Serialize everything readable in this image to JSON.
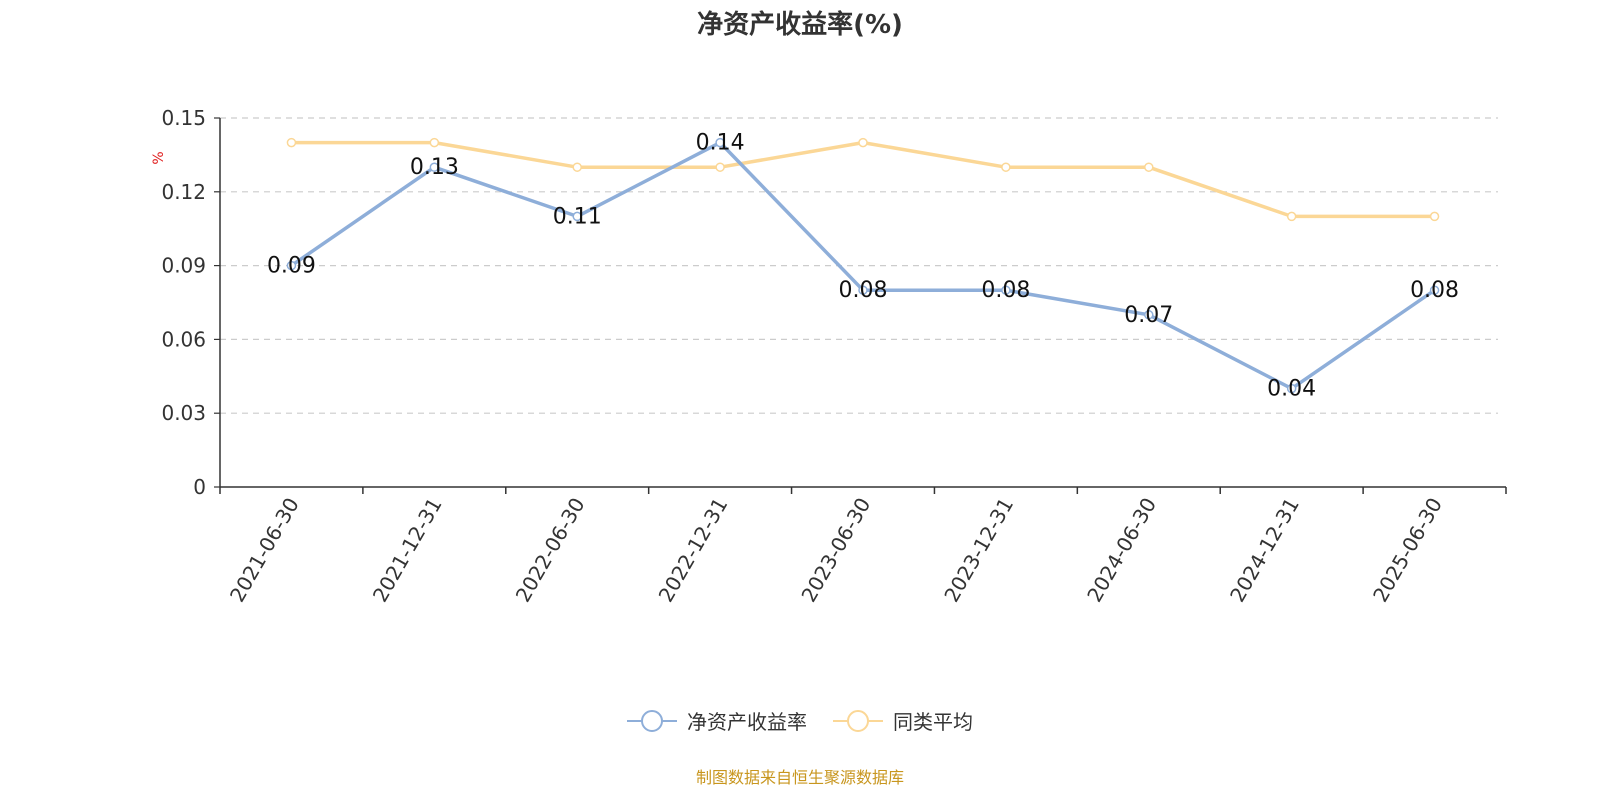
{
  "chart_data": {
    "type": "line",
    "title": "净资产收益率(%)",
    "ylabel": "%",
    "xlabel": "",
    "categories": [
      "2021-06-30",
      "2021-12-31",
      "2022-06-30",
      "2022-12-31",
      "2023-06-30",
      "2023-12-31",
      "2024-06-30",
      "2024-12-31",
      "2025-06-30"
    ],
    "series": [
      {
        "name": "净资产收益率",
        "color": "#8eaed9",
        "values": [
          0.09,
          0.13,
          0.11,
          0.14,
          0.08,
          0.08,
          0.07,
          0.04,
          0.08
        ],
        "data_labels": true
      },
      {
        "name": "同类平均",
        "color": "#fbd796",
        "values": [
          0.14,
          0.14,
          0.13,
          0.13,
          0.14,
          0.13,
          0.13,
          0.11,
          0.11
        ],
        "data_labels": false
      }
    ],
    "ylim": [
      0,
      0.15
    ],
    "yticks": [
      "0",
      "0.03",
      "0.06",
      "0.09",
      "0.12",
      "0.15"
    ],
    "grid": true,
    "legend_position": "bottom"
  },
  "source_note": "制图数据来自恒生聚源数据库",
  "colors": {
    "title": "#333333",
    "axis": "#333333",
    "ylabel": "#e02020",
    "grid": "#cccccc",
    "source": "#c8961e"
  }
}
